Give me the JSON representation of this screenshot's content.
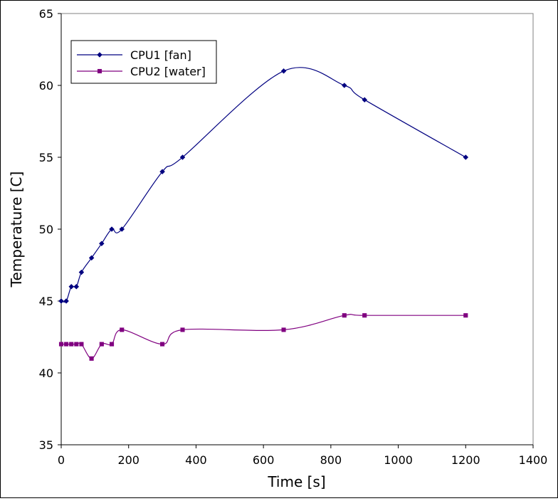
{
  "chart_data": {
    "type": "line",
    "title": "",
    "xlabel": "Time [s]",
    "ylabel": "Temperature [C]",
    "xlim": [
      0,
      1400
    ],
    "ylim": [
      35,
      65
    ],
    "x_ticks": [
      0,
      200,
      400,
      600,
      800,
      1000,
      1200,
      1400
    ],
    "y_ticks": [
      35,
      40,
      45,
      50,
      55,
      60,
      65
    ],
    "x_tick_labels": [
      "0",
      "200",
      "400",
      "600",
      "800",
      "1000",
      "1200",
      "1400"
    ],
    "y_tick_labels": [
      "35",
      "40",
      "45",
      "50",
      "55",
      "60",
      "65"
    ],
    "grid": false,
    "legend_position": "top-left",
    "series": [
      {
        "name": "CPU1 [fan]",
        "color": "#000080",
        "marker": "diamond",
        "points": [
          {
            "x": 0,
            "y": 45
          },
          {
            "x": 15,
            "y": 45
          },
          {
            "x": 30,
            "y": 46
          },
          {
            "x": 45,
            "y": 46
          },
          {
            "x": 60,
            "y": 47
          },
          {
            "x": 90,
            "y": 48
          },
          {
            "x": 120,
            "y": 49
          },
          {
            "x": 150,
            "y": 50
          },
          {
            "x": 180,
            "y": 50
          },
          {
            "x": 300,
            "y": 54
          },
          {
            "x": 360,
            "y": 55
          },
          {
            "x": 660,
            "y": 61
          },
          {
            "x": 840,
            "y": 60
          },
          {
            "x": 900,
            "y": 59
          },
          {
            "x": 1200,
            "y": 55
          }
        ]
      },
      {
        "name": "CPU2 [water]",
        "color": "#800080",
        "marker": "square",
        "points": [
          {
            "x": 0,
            "y": 42
          },
          {
            "x": 15,
            "y": 42
          },
          {
            "x": 30,
            "y": 42
          },
          {
            "x": 45,
            "y": 42
          },
          {
            "x": 60,
            "y": 42
          },
          {
            "x": 90,
            "y": 41
          },
          {
            "x": 120,
            "y": 42
          },
          {
            "x": 150,
            "y": 42
          },
          {
            "x": 180,
            "y": 43
          },
          {
            "x": 300,
            "y": 42
          },
          {
            "x": 360,
            "y": 43
          },
          {
            "x": 660,
            "y": 43
          },
          {
            "x": 840,
            "y": 44
          },
          {
            "x": 900,
            "y": 44
          },
          {
            "x": 1200,
            "y": 44
          }
        ]
      }
    ]
  }
}
